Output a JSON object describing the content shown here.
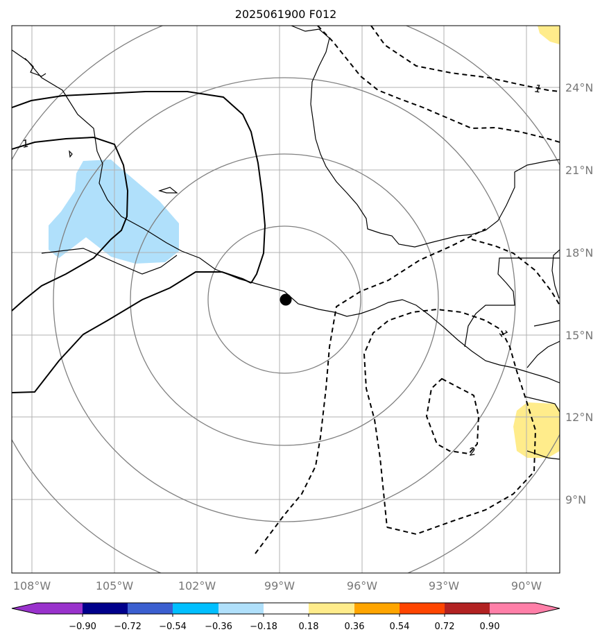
{
  "title": "2025061900 F012",
  "lat_labels": [
    "24°N",
    "21°N",
    "18°N",
    "15°N",
    "12°N",
    "9°N"
  ],
  "lon_labels": [
    "108°W",
    "105°W",
    "102°W",
    "99°W",
    "96°W",
    "93°W",
    "90°W"
  ],
  "colorbar": {
    "ticks": [
      "−0.90",
      "−0.72",
      "−0.54",
      "−0.36",
      "−0.18",
      "0.18",
      "0.36",
      "0.54",
      "0.72",
      "0.90"
    ],
    "colors": [
      "#9932cc",
      "#00008b",
      "#3b5fd0",
      "#00bfff",
      "#b0e0fb",
      "#ffffff",
      "#ffec8b",
      "#ffa500",
      "#ff4500",
      "#b22222",
      "#ff7fa8"
    ]
  },
  "contour_labels": [
    "1",
    "1",
    "1",
    "2"
  ],
  "center_marker": {
    "lon": -98.6,
    "lat": 16.2
  },
  "colors": {
    "grid": "#b0b0b0",
    "range_rings": "#808080",
    "negative_fill": "#b0e0fb",
    "positive_fill": "#ffec8b"
  }
}
